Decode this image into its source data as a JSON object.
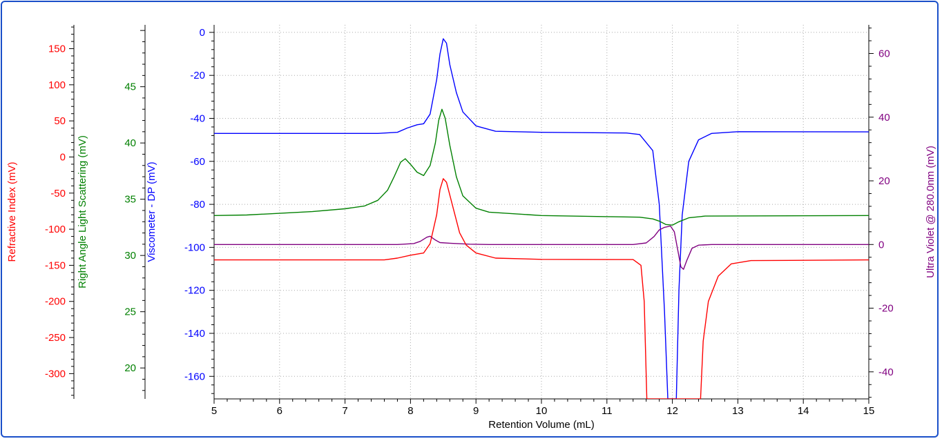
{
  "chart_data": {
    "type": "line",
    "title": "",
    "xlabel": "Retention Volume (mL)",
    "xlim": [
      5,
      15
    ],
    "x_ticks": [
      5,
      6,
      7,
      8,
      9,
      10,
      11,
      12,
      13,
      14,
      15
    ],
    "grid": true,
    "axes": [
      {
        "key": "ri",
        "label": "Refractive Index (mV)",
        "color": "#ff0000",
        "side": "left",
        "range": [
          -335,
          183
        ],
        "ticks": [
          150,
          100,
          50,
          0,
          -50,
          -100,
          -150,
          -200,
          -250,
          -300
        ]
      },
      {
        "key": "rals",
        "label": "Right Angle Light Scattering (mV)",
        "color": "#008000",
        "side": "left",
        "range": [
          17.25,
          50.5
        ],
        "ticks": [
          45,
          40,
          35,
          30,
          25,
          20
        ]
      },
      {
        "key": "dp",
        "label": "Viscometer - DP (mV)",
        "color": "#0000ff",
        "side": "left",
        "range": [
          -170.5,
          3.5
        ],
        "ticks": [
          0,
          -20,
          -40,
          -60,
          -80,
          -100,
          -120,
          -140,
          -160
        ]
      },
      {
        "key": "uv",
        "label": "Ultra Violet @ 280.0nm (mV)",
        "color": "#800080",
        "side": "right",
        "range": [
          -48.5,
          69
        ],
        "ticks": [
          60,
          40,
          20,
          0,
          -20,
          -40
        ]
      }
    ],
    "series": [
      {
        "axis": "dp",
        "color": "#0000ff",
        "points": [
          [
            5,
            -47
          ],
          [
            7.5,
            -47
          ],
          [
            7.8,
            -46.5
          ],
          [
            7.95,
            -44.5
          ],
          [
            8.1,
            -43
          ],
          [
            8.2,
            -42.5
          ],
          [
            8.3,
            -38
          ],
          [
            8.4,
            -22
          ],
          [
            8.45,
            -10
          ],
          [
            8.5,
            -3
          ],
          [
            8.55,
            -5
          ],
          [
            8.6,
            -15
          ],
          [
            8.7,
            -28
          ],
          [
            8.8,
            -37
          ],
          [
            9,
            -43.5
          ],
          [
            9.3,
            -46
          ],
          [
            10,
            -46.5
          ],
          [
            11.3,
            -46.8
          ],
          [
            11.5,
            -47.5
          ],
          [
            11.7,
            -55
          ],
          [
            11.8,
            -80
          ],
          [
            11.88,
            -130
          ],
          [
            11.93,
            -170.5
          ],
          [
            12.06,
            -170.5
          ],
          [
            12.1,
            -120
          ],
          [
            12.15,
            -85
          ],
          [
            12.25,
            -60
          ],
          [
            12.4,
            -50
          ],
          [
            12.6,
            -47
          ],
          [
            13,
            -46.2
          ],
          [
            15,
            -46.3
          ]
        ]
      },
      {
        "axis": "rals",
        "color": "#008000",
        "points": [
          [
            5,
            33.55
          ],
          [
            5.5,
            33.6
          ],
          [
            6.5,
            33.9
          ],
          [
            7,
            34.15
          ],
          [
            7.3,
            34.4
          ],
          [
            7.5,
            34.9
          ],
          [
            7.65,
            35.8
          ],
          [
            7.75,
            37
          ],
          [
            7.85,
            38.3
          ],
          [
            7.92,
            38.6
          ],
          [
            8,
            38.1
          ],
          [
            8.1,
            37.4
          ],
          [
            8.2,
            37.1
          ],
          [
            8.3,
            38
          ],
          [
            8.38,
            40
          ],
          [
            8.43,
            42
          ],
          [
            8.48,
            43
          ],
          [
            8.53,
            42.2
          ],
          [
            8.6,
            39.8
          ],
          [
            8.7,
            37
          ],
          [
            8.8,
            35.3
          ],
          [
            9,
            34.2
          ],
          [
            9.2,
            33.85
          ],
          [
            10,
            33.55
          ],
          [
            11,
            33.45
          ],
          [
            11.5,
            33.4
          ],
          [
            11.7,
            33.25
          ],
          [
            11.8,
            33.05
          ],
          [
            11.9,
            32.75
          ],
          [
            12,
            32.7
          ],
          [
            12.1,
            33
          ],
          [
            12.25,
            33.35
          ],
          [
            12.5,
            33.5
          ],
          [
            15,
            33.55
          ]
        ]
      },
      {
        "axis": "uv",
        "color": "#800080",
        "points": [
          [
            5,
            0
          ],
          [
            7.8,
            0
          ],
          [
            8.05,
            0.3
          ],
          [
            8.15,
            1
          ],
          [
            8.25,
            2.3
          ],
          [
            8.3,
            2.6
          ],
          [
            8.38,
            1.4
          ],
          [
            8.45,
            0.6
          ],
          [
            8.6,
            0.4
          ],
          [
            8.9,
            0.1
          ],
          [
            9.2,
            0
          ],
          [
            11.4,
            0
          ],
          [
            11.6,
            0.5
          ],
          [
            11.72,
            2.5
          ],
          [
            11.8,
            4.6
          ],
          [
            11.88,
            5.4
          ],
          [
            11.97,
            5.8
          ],
          [
            12.03,
            4
          ],
          [
            12.08,
            -1.5
          ],
          [
            12.13,
            -7
          ],
          [
            12.17,
            -7.8
          ],
          [
            12.22,
            -5
          ],
          [
            12.3,
            -1.2
          ],
          [
            12.4,
            -0.2
          ],
          [
            12.6,
            0
          ],
          [
            15,
            0
          ]
        ]
      },
      {
        "axis": "ri",
        "color": "#ff0000",
        "points": [
          [
            5,
            -142.5
          ],
          [
            7.6,
            -142.5
          ],
          [
            7.8,
            -140
          ],
          [
            8,
            -136
          ],
          [
            8.2,
            -133
          ],
          [
            8.3,
            -120
          ],
          [
            8.4,
            -80
          ],
          [
            8.45,
            -45
          ],
          [
            8.5,
            -30
          ],
          [
            8.55,
            -35
          ],
          [
            8.65,
            -70
          ],
          [
            8.75,
            -105
          ],
          [
            8.85,
            -122
          ],
          [
            9,
            -133
          ],
          [
            9.3,
            -140
          ],
          [
            10,
            -141.8
          ],
          [
            11.4,
            -142
          ],
          [
            11.52,
            -150
          ],
          [
            11.57,
            -200
          ],
          [
            11.61,
            -335
          ],
          [
            12.43,
            -335
          ],
          [
            12.47,
            -255
          ],
          [
            12.55,
            -200
          ],
          [
            12.7,
            -165
          ],
          [
            12.9,
            -148
          ],
          [
            13.2,
            -143.5
          ],
          [
            15,
            -142.5
          ]
        ]
      }
    ]
  }
}
